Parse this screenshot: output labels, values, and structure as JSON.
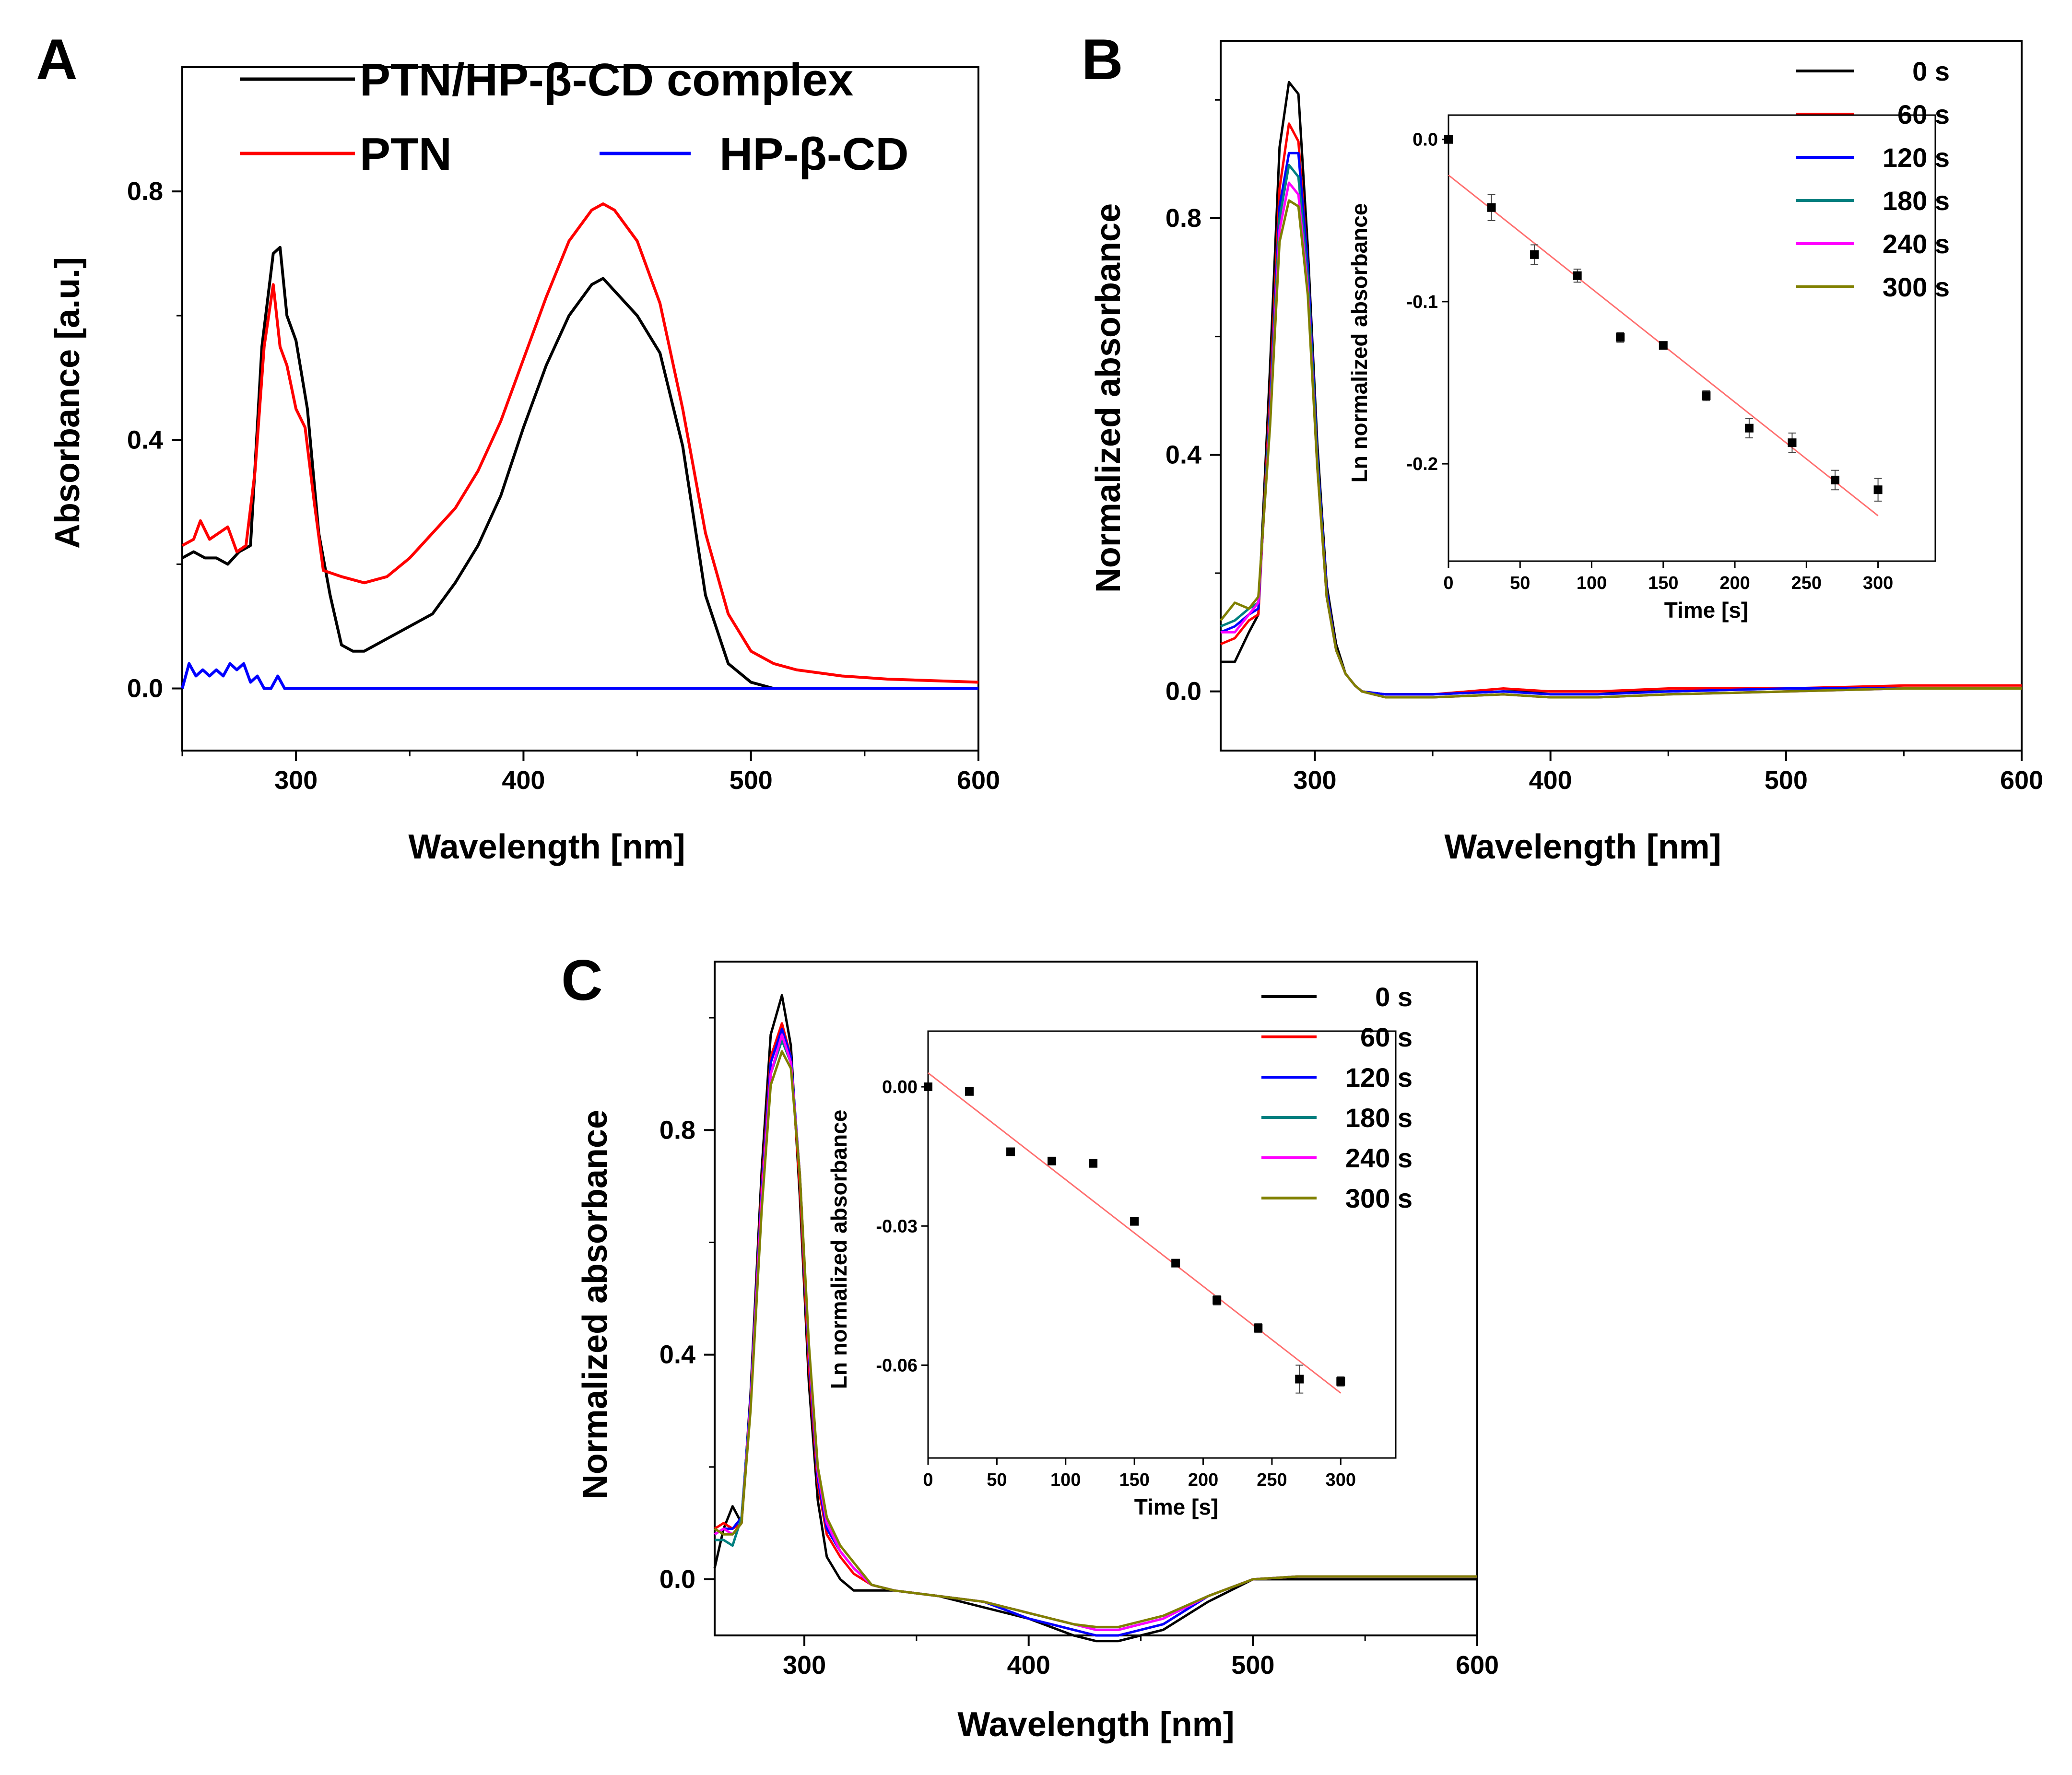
{
  "figure": {
    "panels": [
      {
        "id": "A",
        "label": "A",
        "xlabel": "Wavelength [nm]",
        "ylabel": "Absorbance [a.u.]",
        "xlim": [
          250,
          600
        ],
        "ylim": [
          -0.1,
          1.0
        ],
        "xticks": [
          300,
          400,
          500,
          600
        ],
        "yticks": [
          0.0,
          0.4,
          0.8
        ],
        "ytick_labels": [
          "0.0",
          "0.4",
          "0.8"
        ],
        "legend": [
          {
            "name": "PTN/HP-β-CD complex",
            "color": "#000000"
          },
          {
            "name": "PTN",
            "color": "#ff0000"
          },
          {
            "name": "HP-β-CD",
            "color": "#0000ff"
          }
        ]
      },
      {
        "id": "B",
        "label": "B",
        "xlabel": "Wavelength [nm]",
        "ylabel": "Normalized absorbance",
        "xlim": [
          260,
          600
        ],
        "ylim": [
          -0.1,
          1.1
        ],
        "xticks": [
          300,
          400,
          500,
          600
        ],
        "yticks": [
          0.0,
          0.4,
          0.8
        ],
        "ytick_labels": [
          "0.0",
          "0.4",
          "0.8"
        ],
        "legend": [
          {
            "name": "0 s",
            "color": "#000000"
          },
          {
            "name": "60 s",
            "color": "#ff0000"
          },
          {
            "name": "120 s",
            "color": "#0000ff"
          },
          {
            "name": "180 s",
            "color": "#008080"
          },
          {
            "name": "240 s",
            "color": "#ff00ff"
          },
          {
            "name": "300 s",
            "color": "#808000"
          }
        ],
        "inset": {
          "xlabel": "Time [s]",
          "ylabel": "Ln normalized absorbance",
          "xlim": [
            0,
            340
          ],
          "ylim": [
            -0.26,
            0.015
          ],
          "xticks": [
            0,
            50,
            100,
            150,
            200,
            250,
            300
          ],
          "yticks": [
            0.0,
            -0.1,
            -0.2
          ],
          "ytick_labels": [
            "0.0",
            "-0.1",
            "-0.2"
          ],
          "fit_line": {
            "x": [
              0,
              300
            ],
            "y": [
              -0.022,
              -0.232
            ],
            "color": "#ff6f6f"
          }
        }
      },
      {
        "id": "C",
        "label": "C",
        "xlabel": "Wavelength [nm]",
        "ylabel": "Normalized absorbance",
        "xlim": [
          260,
          600
        ],
        "ylim": [
          -0.1,
          1.1
        ],
        "xticks": [
          300,
          400,
          500,
          600
        ],
        "yticks": [
          0.0,
          0.4,
          0.8
        ],
        "ytick_labels": [
          "0.0",
          "0.4",
          "0.8"
        ],
        "legend": [
          {
            "name": "0 s",
            "color": "#000000"
          },
          {
            "name": "60 s",
            "color": "#ff0000"
          },
          {
            "name": "120 s",
            "color": "#0000ff"
          },
          {
            "name": "180 s",
            "color": "#008080"
          },
          {
            "name": "240 s",
            "color": "#ff00ff"
          },
          {
            "name": "300 s",
            "color": "#808000"
          }
        ],
        "inset": {
          "xlabel": "Time [s]",
          "ylabel": "Ln normalized absorbance",
          "xlim": [
            0,
            340
          ],
          "ylim": [
            -0.08,
            0.012
          ],
          "xticks": [
            0,
            50,
            100,
            150,
            200,
            250,
            300
          ],
          "yticks": [
            0.0,
            -0.03,
            -0.06
          ],
          "ytick_labels": [
            "0.00",
            "-0.03",
            "-0.06"
          ],
          "fit_line": {
            "x": [
              0,
              300
            ],
            "y": [
              0.003,
              -0.066
            ],
            "color": "#ff6f6f"
          }
        }
      }
    ]
  },
  "chart_data": [
    {
      "type": "line",
      "panel": "A",
      "xlabel": "Wavelength [nm]",
      "ylabel": "Absorbance [a.u.]",
      "xlim": [
        250,
        600
      ],
      "ylim": [
        -0.1,
        1.0
      ],
      "series": [
        {
          "name": "PTN/HP-β-CD complex",
          "color": "#000000",
          "x": [
            250,
            255,
            260,
            265,
            270,
            275,
            280,
            285,
            290,
            293,
            296,
            300,
            305,
            310,
            315,
            320,
            325,
            330,
            340,
            350,
            360,
            370,
            380,
            390,
            400,
            410,
            420,
            430,
            435,
            440,
            450,
            460,
            470,
            480,
            490,
            500,
            510,
            520,
            550,
            600
          ],
          "y": [
            0.21,
            0.22,
            0.21,
            0.21,
            0.2,
            0.22,
            0.23,
            0.55,
            0.7,
            0.71,
            0.6,
            0.56,
            0.45,
            0.25,
            0.15,
            0.07,
            0.06,
            0.06,
            0.08,
            0.1,
            0.12,
            0.17,
            0.23,
            0.31,
            0.42,
            0.52,
            0.6,
            0.65,
            0.66,
            0.64,
            0.6,
            0.54,
            0.39,
            0.15,
            0.04,
            0.01,
            0.0,
            0.0,
            0.0,
            0.0
          ]
        },
        {
          "name": "PTN",
          "color": "#ff0000",
          "x": [
            250,
            255,
            258,
            262,
            266,
            270,
            274,
            278,
            282,
            286,
            290,
            293,
            296,
            300,
            304,
            308,
            312,
            320,
            330,
            340,
            350,
            360,
            370,
            380,
            390,
            400,
            410,
            420,
            430,
            435,
            440,
            450,
            460,
            470,
            480,
            490,
            500,
            510,
            520,
            540,
            560,
            600
          ],
          "y": [
            0.23,
            0.24,
            0.27,
            0.24,
            0.25,
            0.26,
            0.22,
            0.23,
            0.35,
            0.55,
            0.65,
            0.55,
            0.52,
            0.45,
            0.42,
            0.3,
            0.19,
            0.18,
            0.17,
            0.18,
            0.21,
            0.25,
            0.29,
            0.35,
            0.43,
            0.53,
            0.63,
            0.72,
            0.77,
            0.78,
            0.77,
            0.72,
            0.62,
            0.45,
            0.25,
            0.12,
            0.06,
            0.04,
            0.03,
            0.02,
            0.015,
            0.01
          ]
        },
        {
          "name": "HP-β-CD",
          "color": "#0000ff",
          "x": [
            250,
            253,
            256,
            259,
            262,
            265,
            268,
            271,
            274,
            277,
            280,
            283,
            286,
            289,
            292,
            295,
            300,
            320,
            350,
            400,
            450,
            500,
            550,
            600
          ],
          "y": [
            0.0,
            0.04,
            0.02,
            0.03,
            0.02,
            0.03,
            0.02,
            0.04,
            0.03,
            0.04,
            0.01,
            0.02,
            0.0,
            0.0,
            0.02,
            0.0,
            0.0,
            0.0,
            0.0,
            0.0,
            0.0,
            0.0,
            0.0,
            0.0
          ]
        }
      ]
    },
    {
      "type": "line",
      "panel": "B",
      "xlabel": "Wavelength [nm]",
      "ylabel": "Normalized absorbance",
      "xlim": [
        260,
        600
      ],
      "ylim": [
        -0.1,
        1.1
      ],
      "x": [
        260,
        266,
        272,
        276,
        281,
        285,
        289,
        293,
        297,
        301,
        305,
        309,
        313,
        317,
        320,
        330,
        350,
        380,
        400,
        420,
        450,
        500,
        550,
        600
      ],
      "series": [
        {
          "name": "0 s",
          "color": "#000000",
          "y": [
            0.05,
            0.05,
            0.1,
            0.13,
            0.55,
            0.92,
            1.03,
            1.01,
            0.75,
            0.42,
            0.18,
            0.08,
            0.03,
            0.01,
            0.0,
            -0.005,
            -0.005,
            0.0,
            0.0,
            0.0,
            0.0,
            0.005,
            0.005,
            0.005
          ]
        },
        {
          "name": "60 s",
          "color": "#ff0000",
          "y": [
            0.08,
            0.09,
            0.12,
            0.13,
            0.5,
            0.85,
            0.96,
            0.93,
            0.72,
            0.4,
            0.17,
            0.07,
            0.03,
            0.01,
            0.0,
            -0.005,
            -0.005,
            0.005,
            0.0,
            0.0,
            0.005,
            0.005,
            0.01,
            0.01
          ]
        },
        {
          "name": "120 s",
          "color": "#0000ff",
          "y": [
            0.1,
            0.11,
            0.13,
            0.14,
            0.48,
            0.82,
            0.91,
            0.91,
            0.72,
            0.4,
            0.17,
            0.07,
            0.03,
            0.01,
            0.0,
            -0.005,
            -0.005,
            0.0,
            -0.005,
            -0.005,
            0.0,
            0.005,
            0.005,
            0.005
          ]
        },
        {
          "name": "180 s",
          "color": "#008080",
          "y": [
            0.11,
            0.12,
            0.14,
            0.15,
            0.47,
            0.8,
            0.89,
            0.87,
            0.7,
            0.39,
            0.16,
            0.07,
            0.03,
            0.01,
            0.0,
            -0.01,
            -0.01,
            -0.005,
            -0.01,
            -0.01,
            -0.005,
            0.0,
            0.005,
            0.005
          ]
        },
        {
          "name": "240 s",
          "color": "#ff00ff",
          "y": [
            0.1,
            0.1,
            0.13,
            0.15,
            0.46,
            0.78,
            0.86,
            0.84,
            0.68,
            0.38,
            0.16,
            0.07,
            0.03,
            0.01,
            0.0,
            -0.01,
            -0.01,
            -0.005,
            -0.01,
            -0.01,
            -0.005,
            0.0,
            0.005,
            0.005
          ]
        },
        {
          "name": "300 s",
          "color": "#808000",
          "y": [
            0.12,
            0.15,
            0.14,
            0.16,
            0.45,
            0.76,
            0.83,
            0.82,
            0.67,
            0.38,
            0.16,
            0.07,
            0.03,
            0.01,
            0.0,
            -0.01,
            -0.01,
            -0.005,
            -0.01,
            -0.01,
            -0.005,
            0.0,
            0.005,
            0.005
          ]
        }
      ],
      "inset": {
        "type": "scatter",
        "xlabel": "Time [s]",
        "ylabel": "Ln normalized absorbance",
        "x": [
          0,
          30,
          60,
          90,
          120,
          150,
          180,
          210,
          240,
          270,
          300
        ],
        "y": [
          0.0,
          -0.042,
          -0.071,
          -0.084,
          -0.122,
          -0.127,
          -0.158,
          -0.178,
          -0.187,
          -0.21,
          -0.216
        ],
        "yerr": [
          0.002,
          0.008,
          0.006,
          0.004,
          0.003,
          0.002,
          0.003,
          0.006,
          0.006,
          0.006,
          0.007
        ]
      }
    },
    {
      "type": "line",
      "panel": "C",
      "xlabel": "Wavelength [nm]",
      "ylabel": "Normalized absorbance",
      "xlim": [
        260,
        600
      ],
      "ylim": [
        -0.1,
        1.1
      ],
      "x": [
        260,
        264,
        268,
        272,
        276,
        281,
        285,
        290,
        294,
        298,
        302,
        306,
        310,
        316,
        322,
        330,
        340,
        360,
        380,
        400,
        420,
        430,
        440,
        460,
        480,
        500,
        520,
        550,
        600
      ],
      "series": [
        {
          "name": "0 s",
          "color": "#000000",
          "y": [
            0.02,
            0.09,
            0.13,
            0.1,
            0.33,
            0.73,
            0.97,
            1.04,
            0.95,
            0.68,
            0.35,
            0.14,
            0.04,
            0.0,
            -0.02,
            -0.02,
            -0.02,
            -0.03,
            -0.05,
            -0.07,
            -0.1,
            -0.11,
            -0.11,
            -0.09,
            -0.04,
            0.0,
            0.0,
            0.0,
            0.0
          ]
        },
        {
          "name": "60 s",
          "color": "#ff0000",
          "y": [
            0.09,
            0.1,
            0.09,
            0.1,
            0.32,
            0.7,
            0.93,
            0.99,
            0.93,
            0.7,
            0.38,
            0.17,
            0.08,
            0.04,
            0.01,
            -0.01,
            -0.02,
            -0.03,
            -0.04,
            -0.07,
            -0.09,
            -0.1,
            -0.1,
            -0.08,
            -0.03,
            0.0,
            0.005,
            0.005,
            0.005
          ]
        },
        {
          "name": "120 s",
          "color": "#0000ff",
          "y": [
            0.08,
            0.09,
            0.09,
            0.11,
            0.32,
            0.69,
            0.92,
            0.98,
            0.93,
            0.72,
            0.4,
            0.18,
            0.09,
            0.05,
            0.02,
            -0.01,
            -0.02,
            -0.03,
            -0.04,
            -0.07,
            -0.09,
            -0.1,
            -0.1,
            -0.08,
            -0.03,
            0.0,
            0.005,
            0.005,
            0.005
          ]
        },
        {
          "name": "180 s",
          "color": "#008080",
          "y": [
            0.07,
            0.07,
            0.06,
            0.11,
            0.31,
            0.68,
            0.9,
            0.96,
            0.92,
            0.72,
            0.41,
            0.19,
            0.1,
            0.05,
            0.02,
            -0.01,
            -0.02,
            -0.03,
            -0.04,
            -0.06,
            -0.08,
            -0.09,
            -0.09,
            -0.07,
            -0.03,
            0.0,
            0.005,
            0.005,
            0.005
          ]
        },
        {
          "name": "240 s",
          "color": "#ff00ff",
          "y": [
            0.08,
            0.09,
            0.08,
            0.1,
            0.31,
            0.68,
            0.9,
            0.97,
            0.92,
            0.72,
            0.41,
            0.19,
            0.1,
            0.05,
            0.02,
            -0.01,
            -0.02,
            -0.03,
            -0.04,
            -0.06,
            -0.08,
            -0.09,
            -0.09,
            -0.07,
            -0.03,
            0.0,
            0.005,
            0.005,
            0.005
          ]
        },
        {
          "name": "300 s",
          "color": "#808000",
          "y": [
            0.09,
            0.08,
            0.08,
            0.1,
            0.3,
            0.66,
            0.88,
            0.94,
            0.91,
            0.72,
            0.42,
            0.2,
            0.11,
            0.06,
            0.03,
            -0.01,
            -0.02,
            -0.03,
            -0.04,
            -0.06,
            -0.08,
            -0.085,
            -0.085,
            -0.065,
            -0.03,
            0.0,
            0.005,
            0.005,
            0.005
          ]
        }
      ],
      "inset": {
        "type": "scatter",
        "xlabel": "Time [s]",
        "ylabel": "Ln normalized absorbance",
        "x": [
          0,
          30,
          60,
          90,
          120,
          150,
          180,
          210,
          240,
          270,
          300
        ],
        "y": [
          0.0,
          -0.001,
          -0.014,
          -0.016,
          -0.0165,
          -0.029,
          -0.038,
          -0.046,
          -0.052,
          -0.063,
          -0.0635
        ],
        "yerr": [
          0.0005,
          0.0005,
          0.0005,
          0.0005,
          0.0005,
          0.0005,
          0.0005,
          0.001,
          0.001,
          0.003,
          0.001
        ]
      }
    }
  ]
}
